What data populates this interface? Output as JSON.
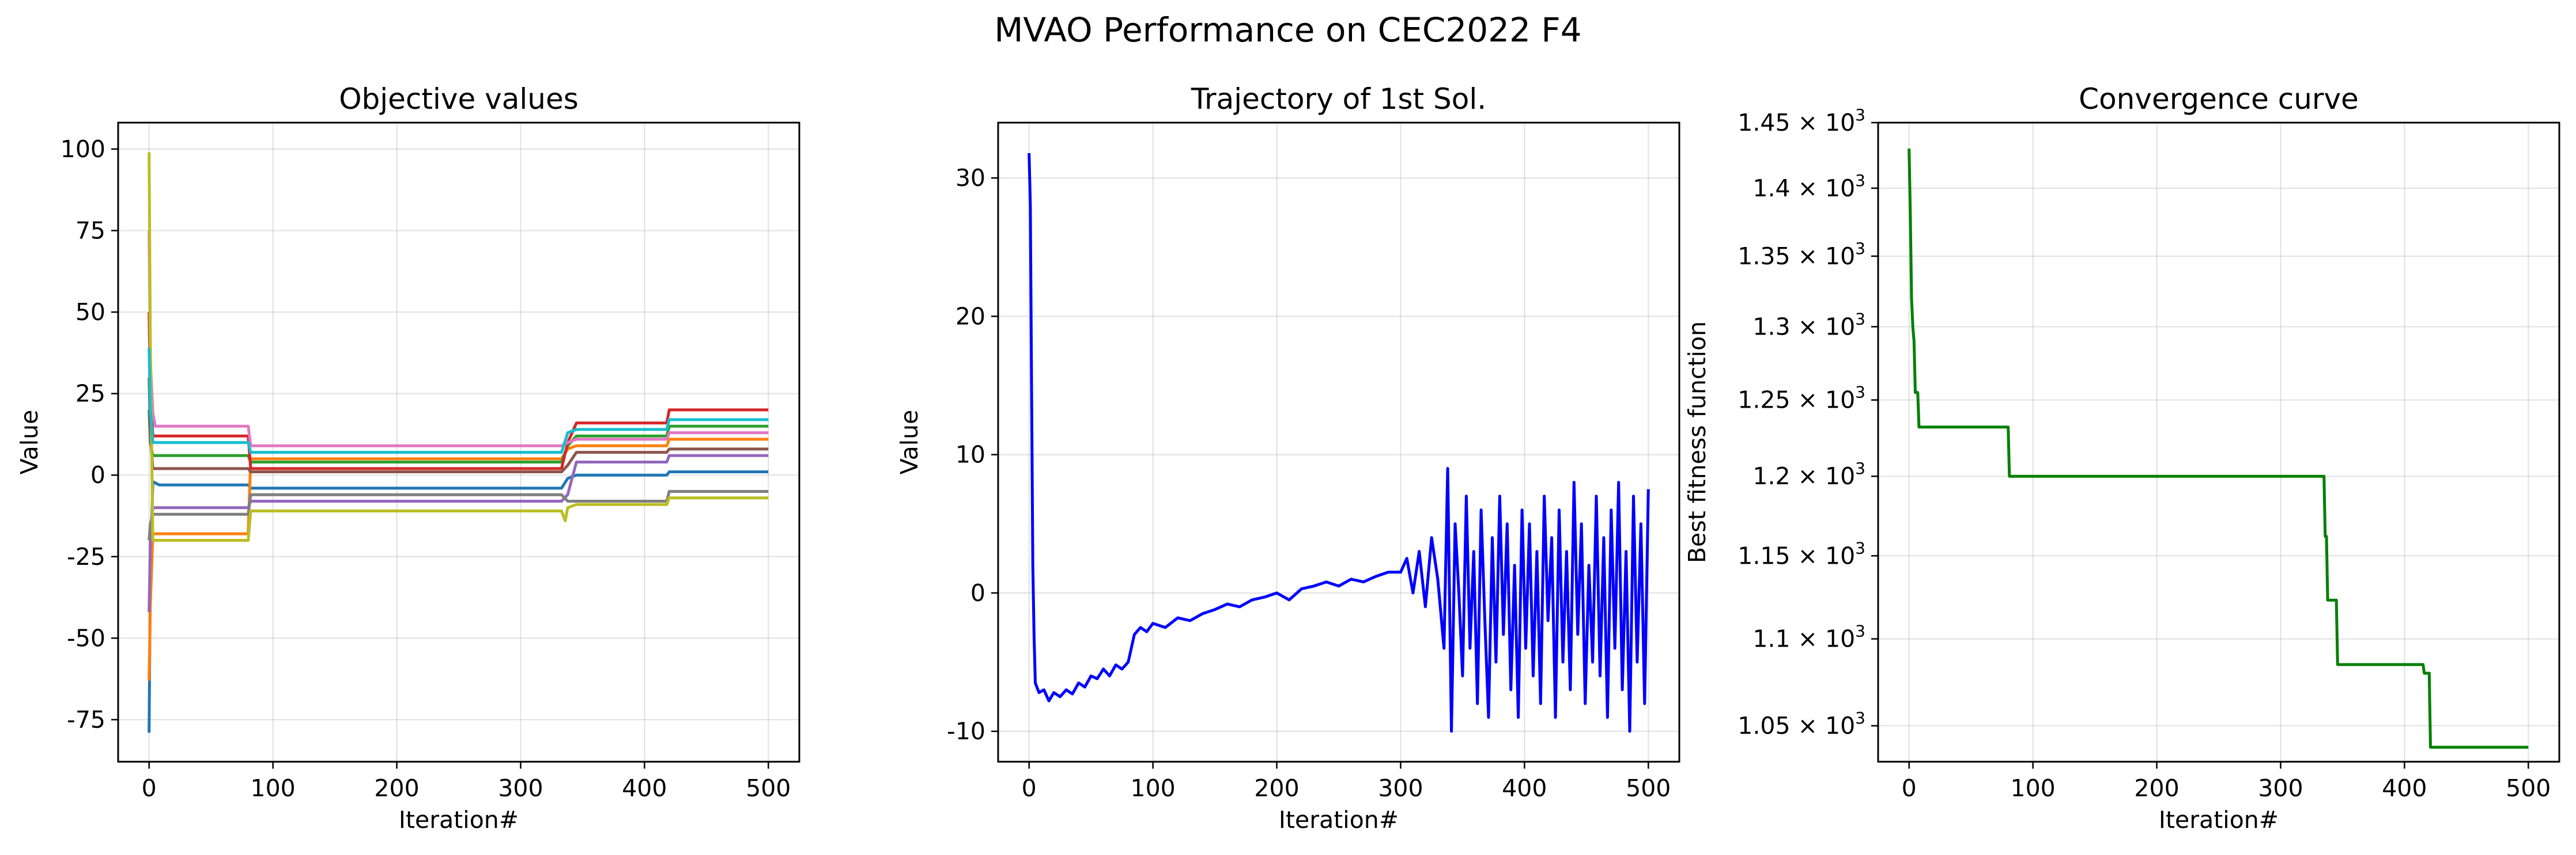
{
  "figure": {
    "suptitle": "MVAO Performance on CEC2022 F4"
  },
  "chart_data": [
    {
      "type": "line",
      "title": "Objective values",
      "xlabel": "Iteration#",
      "ylabel": "Value",
      "xlim": [
        -25,
        525
      ],
      "ylim": [
        -87.9,
        108.1
      ],
      "xticks": [
        0,
        100,
        200,
        300,
        400,
        500
      ],
      "yticks": [
        -75,
        -50,
        -25,
        0,
        25,
        50,
        75,
        100
      ],
      "grid": true,
      "series": [
        {
          "color": "#1f77b4",
          "points": [
            [
              0,
              -79
            ],
            [
              1,
              -30
            ],
            [
              3,
              -2
            ],
            [
              8,
              -3
            ],
            [
              80,
              -3
            ],
            [
              82,
              -4
            ],
            [
              333,
              -4
            ],
            [
              338,
              -1
            ],
            [
              345,
              0
            ],
            [
              418,
              0
            ],
            [
              420,
              1
            ],
            [
              500,
              1
            ]
          ]
        },
        {
          "color": "#ff7f0e",
          "points": [
            [
              0,
              -63
            ],
            [
              1,
              -40
            ],
            [
              3,
              -18
            ],
            [
              8,
              -18
            ],
            [
              80,
              -18
            ],
            [
              82,
              5
            ],
            [
              333,
              5
            ],
            [
              338,
              8
            ],
            [
              345,
              9
            ],
            [
              418,
              9
            ],
            [
              420,
              11
            ],
            [
              500,
              11
            ]
          ]
        },
        {
          "color": "#2ca02c",
          "points": [
            [
              0,
              20
            ],
            [
              1,
              10
            ],
            [
              3,
              6
            ],
            [
              8,
              6
            ],
            [
              80,
              6
            ],
            [
              82,
              4
            ],
            [
              333,
              4
            ],
            [
              338,
              9
            ],
            [
              345,
              12
            ],
            [
              418,
              12
            ],
            [
              420,
              15
            ],
            [
              500,
              15
            ]
          ]
        },
        {
          "color": "#d62728",
          "points": [
            [
              0,
              50
            ],
            [
              1,
              25
            ],
            [
              3,
              12
            ],
            [
              8,
              12
            ],
            [
              80,
              12
            ],
            [
              82,
              2
            ],
            [
              333,
              2
            ],
            [
              338,
              10
            ],
            [
              345,
              16
            ],
            [
              418,
              16
            ],
            [
              420,
              20
            ],
            [
              500,
              20
            ]
          ]
        },
        {
          "color": "#9467bd",
          "points": [
            [
              0,
              -42
            ],
            [
              1,
              -20
            ],
            [
              3,
              -10
            ],
            [
              8,
              -10
            ],
            [
              80,
              -10
            ],
            [
              82,
              -8
            ],
            [
              333,
              -8
            ],
            [
              338,
              -6
            ],
            [
              345,
              4
            ],
            [
              418,
              4
            ],
            [
              420,
              6
            ],
            [
              500,
              6
            ]
          ]
        },
        {
          "color": "#8c564b",
          "points": [
            [
              0,
              30
            ],
            [
              1,
              12
            ],
            [
              3,
              2
            ],
            [
              8,
              2
            ],
            [
              80,
              2
            ],
            [
              82,
              1
            ],
            [
              333,
              1
            ],
            [
              338,
              3
            ],
            [
              345,
              7
            ],
            [
              418,
              7
            ],
            [
              420,
              8
            ],
            [
              500,
              8
            ]
          ]
        },
        {
          "color": "#e377c2",
          "points": [
            [
              0,
              75
            ],
            [
              1,
              35
            ],
            [
              3,
              19
            ],
            [
              5,
              15
            ],
            [
              8,
              15
            ],
            [
              80,
              15
            ],
            [
              82,
              9
            ],
            [
              333,
              9
            ],
            [
              338,
              10
            ],
            [
              345,
              11
            ],
            [
              418,
              11
            ],
            [
              420,
              13
            ],
            [
              500,
              13
            ]
          ]
        },
        {
          "color": "#7f7f7f",
          "points": [
            [
              0,
              -20
            ],
            [
              1,
              -15
            ],
            [
              3,
              -12
            ],
            [
              8,
              -12
            ],
            [
              80,
              -12
            ],
            [
              82,
              -6
            ],
            [
              333,
              -6
            ],
            [
              338,
              -8
            ],
            [
              345,
              -8
            ],
            [
              418,
              -8
            ],
            [
              420,
              -5
            ],
            [
              500,
              -5
            ]
          ]
        },
        {
          "color": "#bcbd22",
          "points": [
            [
              0,
              99
            ],
            [
              1,
              40
            ],
            [
              3,
              -20
            ],
            [
              8,
              -20
            ],
            [
              80,
              -20
            ],
            [
              82,
              -11
            ],
            [
              333,
              -11
            ],
            [
              336,
              -14
            ],
            [
              338,
              -10
            ],
            [
              345,
              -9
            ],
            [
              418,
              -9
            ],
            [
              420,
              -7
            ],
            [
              500,
              -7
            ]
          ]
        },
        {
          "color": "#17becf",
          "points": [
            [
              0,
              39
            ],
            [
              1,
              20
            ],
            [
              3,
              10
            ],
            [
              8,
              10
            ],
            [
              80,
              10
            ],
            [
              82,
              7
            ],
            [
              333,
              7
            ],
            [
              338,
              13
            ],
            [
              345,
              14
            ],
            [
              418,
              14
            ],
            [
              420,
              17
            ],
            [
              500,
              17
            ]
          ]
        }
      ]
    },
    {
      "type": "line",
      "title": "Trajectory of 1st Sol.",
      "xlabel": "Iteration#",
      "ylabel": "Value",
      "xlim": [
        -25,
        525
      ],
      "ylim": [
        -12.2,
        34.0
      ],
      "xticks": [
        0,
        100,
        200,
        300,
        400,
        500
      ],
      "yticks": [
        -10,
        0,
        10,
        20,
        30
      ],
      "grid": true,
      "series": [
        {
          "color": "#0000ff",
          "points": [
            [
              0,
              31.8
            ],
            [
              1,
              28
            ],
            [
              2,
              15
            ],
            [
              3,
              2
            ],
            [
              4,
              -3
            ],
            [
              5,
              -6.5
            ],
            [
              8,
              -7.2
            ],
            [
              12,
              -7
            ],
            [
              16,
              -7.8
            ],
            [
              20,
              -7.2
            ],
            [
              25,
              -7.5
            ],
            [
              30,
              -7
            ],
            [
              35,
              -7.3
            ],
            [
              40,
              -6.5
            ],
            [
              45,
              -6.8
            ],
            [
              50,
              -6
            ],
            [
              55,
              -6.2
            ],
            [
              60,
              -5.5
            ],
            [
              65,
              -6
            ],
            [
              70,
              -5.2
            ],
            [
              75,
              -5.5
            ],
            [
              80,
              -5
            ],
            [
              85,
              -3
            ],
            [
              90,
              -2.5
            ],
            [
              95,
              -2.8
            ],
            [
              100,
              -2.2
            ],
            [
              110,
              -2.5
            ],
            [
              120,
              -1.8
            ],
            [
              130,
              -2
            ],
            [
              140,
              -1.5
            ],
            [
              150,
              -1.2
            ],
            [
              160,
              -0.8
            ],
            [
              170,
              -1
            ],
            [
              180,
              -0.5
            ],
            [
              190,
              -0.3
            ],
            [
              200,
              0
            ],
            [
              210,
              -0.5
            ],
            [
              220,
              0.3
            ],
            [
              230,
              0.5
            ],
            [
              240,
              0.8
            ],
            [
              250,
              0.5
            ],
            [
              260,
              1
            ],
            [
              270,
              0.8
            ],
            [
              280,
              1.2
            ],
            [
              290,
              1.5
            ],
            [
              300,
              1.5
            ],
            [
              305,
              2.5
            ],
            [
              310,
              0
            ],
            [
              315,
              3
            ],
            [
              320,
              -1
            ],
            [
              325,
              4
            ],
            [
              330,
              1
            ],
            [
              335,
              -4
            ],
            [
              338,
              9
            ],
            [
              341,
              -10
            ],
            [
              344,
              5
            ],
            [
              347,
              0
            ],
            [
              350,
              -6
            ],
            [
              353,
              7
            ],
            [
              356,
              -4
            ],
            [
              359,
              3
            ],
            [
              362,
              -8
            ],
            [
              365,
              6
            ],
            [
              368,
              -2
            ],
            [
              371,
              -9
            ],
            [
              374,
              4
            ],
            [
              377,
              -5
            ],
            [
              380,
              7
            ],
            [
              383,
              -3
            ],
            [
              386,
              5
            ],
            [
              389,
              -7
            ],
            [
              392,
              2
            ],
            [
              395,
              -9
            ],
            [
              398,
              6
            ],
            [
              401,
              -4
            ],
            [
              404,
              5
            ],
            [
              407,
              -6
            ],
            [
              410,
              3
            ],
            [
              413,
              -8
            ],
            [
              416,
              7
            ],
            [
              419,
              -2
            ],
            [
              422,
              4
            ],
            [
              425,
              -9
            ],
            [
              428,
              6
            ],
            [
              431,
              -5
            ],
            [
              434,
              3
            ],
            [
              437,
              -7
            ],
            [
              440,
              8
            ],
            [
              443,
              -3
            ],
            [
              446,
              5
            ],
            [
              449,
              -8
            ],
            [
              452,
              2
            ],
            [
              455,
              -5
            ],
            [
              458,
              7
            ],
            [
              461,
              -6
            ],
            [
              464,
              4
            ],
            [
              467,
              -9
            ],
            [
              470,
              6
            ],
            [
              473,
              -4
            ],
            [
              476,
              8
            ],
            [
              479,
              -7
            ],
            [
              482,
              3
            ],
            [
              485,
              -10
            ],
            [
              488,
              7
            ],
            [
              491,
              -5
            ],
            [
              494,
              5
            ],
            [
              497,
              -8
            ],
            [
              500,
              7.5
            ]
          ]
        }
      ]
    },
    {
      "type": "line",
      "title": "Convergence curve",
      "xlabel": "Iteration#",
      "ylabel": "Best fitness function",
      "yscale": "log",
      "xlim": [
        -25,
        525
      ],
      "ylim": [
        1030,
        1450
      ],
      "xticks": [
        0,
        100,
        200,
        300,
        400,
        500
      ],
      "ytick_values": [
        1050,
        1100,
        1150,
        1200,
        1250,
        1300,
        1350,
        1400,
        1450
      ],
      "ytick_labels": [
        {
          "mantissa": "1.05",
          "base": "10",
          "exp": "3"
        },
        {
          "mantissa": "1.1",
          "base": "10",
          "exp": "3"
        },
        {
          "mantissa": "1.15",
          "base": "10",
          "exp": "3"
        },
        {
          "mantissa": "1.2",
          "base": "10",
          "exp": "3"
        },
        {
          "mantissa": "1.25",
          "base": "10",
          "exp": "3"
        },
        {
          "mantissa": "1.3",
          "base": "10",
          "exp": "3"
        },
        {
          "mantissa": "1.35",
          "base": "10",
          "exp": "3"
        },
        {
          "mantissa": "1.4",
          "base": "10",
          "exp": "3"
        },
        {
          "mantissa": "1.45",
          "base": "10",
          "exp": "3"
        }
      ],
      "grid": true,
      "series": [
        {
          "color": "#008000",
          "points": [
            [
              0,
              1430
            ],
            [
              1,
              1380
            ],
            [
              2,
              1320
            ],
            [
              3,
              1300
            ],
            [
              4,
              1290
            ],
            [
              5,
              1255
            ],
            [
              7,
              1255
            ],
            [
              8,
              1232
            ],
            [
              80,
              1232
            ],
            [
              81,
              1200
            ],
            [
              335,
              1200
            ],
            [
              336,
              1162
            ],
            [
              337,
              1162
            ],
            [
              338,
              1123
            ],
            [
              345,
              1123
            ],
            [
              346,
              1085
            ],
            [
              415,
              1085
            ],
            [
              416,
              1080
            ],
            [
              420,
              1080
            ],
            [
              421,
              1038
            ],
            [
              500,
              1038
            ]
          ]
        }
      ]
    }
  ]
}
